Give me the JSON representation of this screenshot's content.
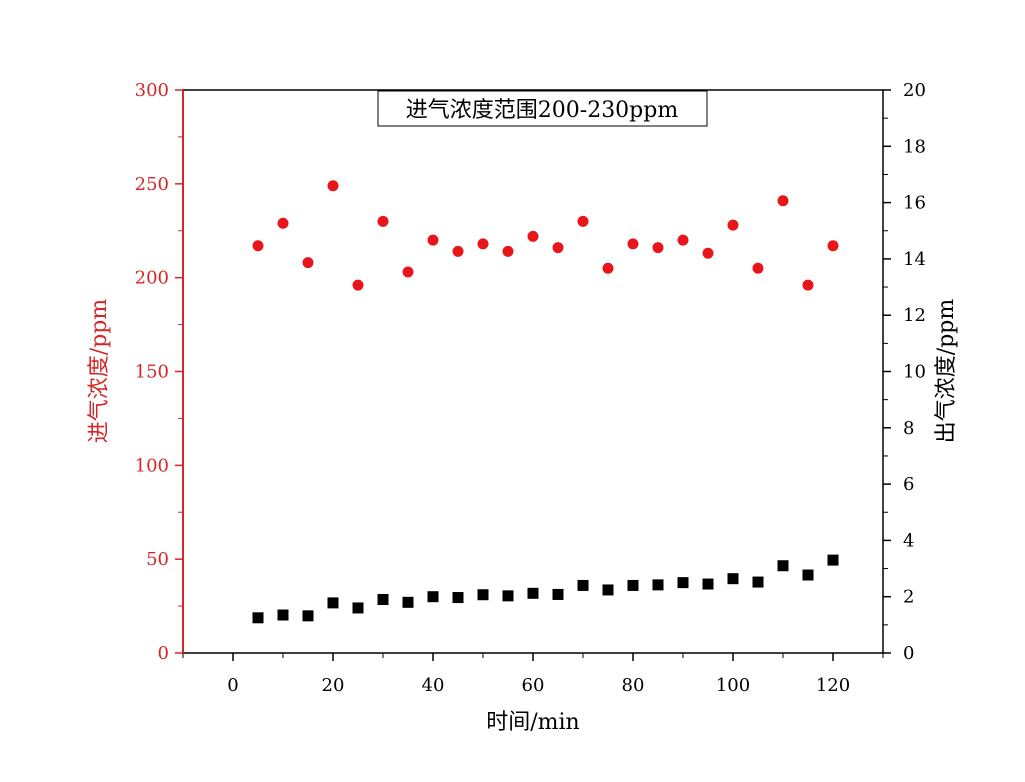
{
  "chart_data": {
    "type": "scatter",
    "title": "进气浓度范围200-230ppm",
    "xlabel": "时间/min",
    "ylabel_left": "进气浓度/ppm",
    "ylabel_right": "出气浓度/ppm",
    "xlim": [
      -10,
      130
    ],
    "ylim_left": [
      0,
      300
    ],
    "ylim_right": [
      0,
      20
    ],
    "x_ticks": [
      0,
      20,
      40,
      60,
      80,
      100,
      120
    ],
    "y_left_ticks": [
      0,
      50,
      100,
      150,
      200,
      250,
      300
    ],
    "y_right_ticks": [
      0,
      2,
      4,
      6,
      8,
      10,
      12,
      14,
      16,
      18,
      20
    ],
    "grid": false,
    "colors": {
      "left_axis": "#d62728",
      "right_axis": "#000000",
      "inlet": "#e8161b",
      "outlet": "#000000"
    },
    "series": [
      {
        "axis": "left",
        "marker": "circle",
        "x": [
          5,
          10,
          15,
          20,
          25,
          30,
          35,
          40,
          45,
          50,
          55,
          60,
          65,
          70,
          75,
          80,
          85,
          90,
          95,
          100,
          105,
          110,
          115,
          120
        ],
        "y": [
          217,
          229,
          208,
          249,
          196,
          230,
          203,
          220,
          214,
          218,
          214,
          222,
          216,
          230,
          205,
          218,
          216,
          220,
          213,
          228,
          205,
          241,
          196,
          217
        ]
      },
      {
        "axis": "right",
        "marker": "square",
        "x": [
          5,
          10,
          15,
          20,
          25,
          30,
          35,
          40,
          45,
          50,
          55,
          60,
          65,
          70,
          75,
          80,
          85,
          90,
          95,
          100,
          105,
          110,
          115,
          120
        ],
        "y": [
          1.25,
          1.35,
          1.32,
          1.78,
          1.6,
          1.9,
          1.8,
          2.0,
          1.97,
          2.07,
          2.03,
          2.12,
          2.08,
          2.4,
          2.24,
          2.4,
          2.42,
          2.5,
          2.45,
          2.64,
          2.52,
          3.1,
          2.77,
          3.3
        ]
      }
    ]
  }
}
